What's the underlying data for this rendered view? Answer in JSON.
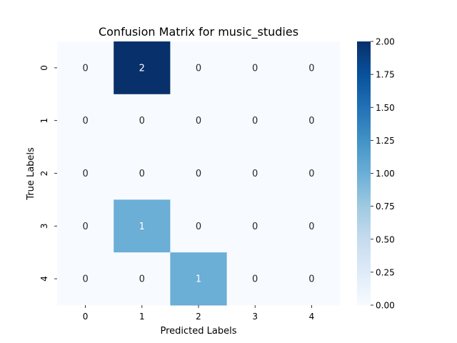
{
  "chart_data": {
    "type": "heatmap",
    "title": "Confusion Matrix for music_studies",
    "xlabel": "Predicted Labels",
    "ylabel": "True Labels",
    "x_categories": [
      "0",
      "1",
      "2",
      "3",
      "4"
    ],
    "y_categories": [
      "0",
      "1",
      "2",
      "3",
      "4"
    ],
    "values": [
      [
        0,
        2,
        0,
        0,
        0
      ],
      [
        0,
        0,
        0,
        0,
        0
      ],
      [
        0,
        0,
        0,
        0,
        0
      ],
      [
        0,
        1,
        0,
        0,
        0
      ],
      [
        0,
        0,
        1,
        0,
        0
      ]
    ],
    "colorbar": {
      "min": 0,
      "max": 2,
      "ticks": [
        "0.00",
        "0.25",
        "0.50",
        "0.75",
        "1.00",
        "1.25",
        "1.50",
        "1.75",
        "2.00"
      ]
    },
    "colormap": "Blues",
    "colors": {
      "low": "#f7fbff",
      "mid": "#6baed6",
      "high": "#08306b"
    }
  }
}
